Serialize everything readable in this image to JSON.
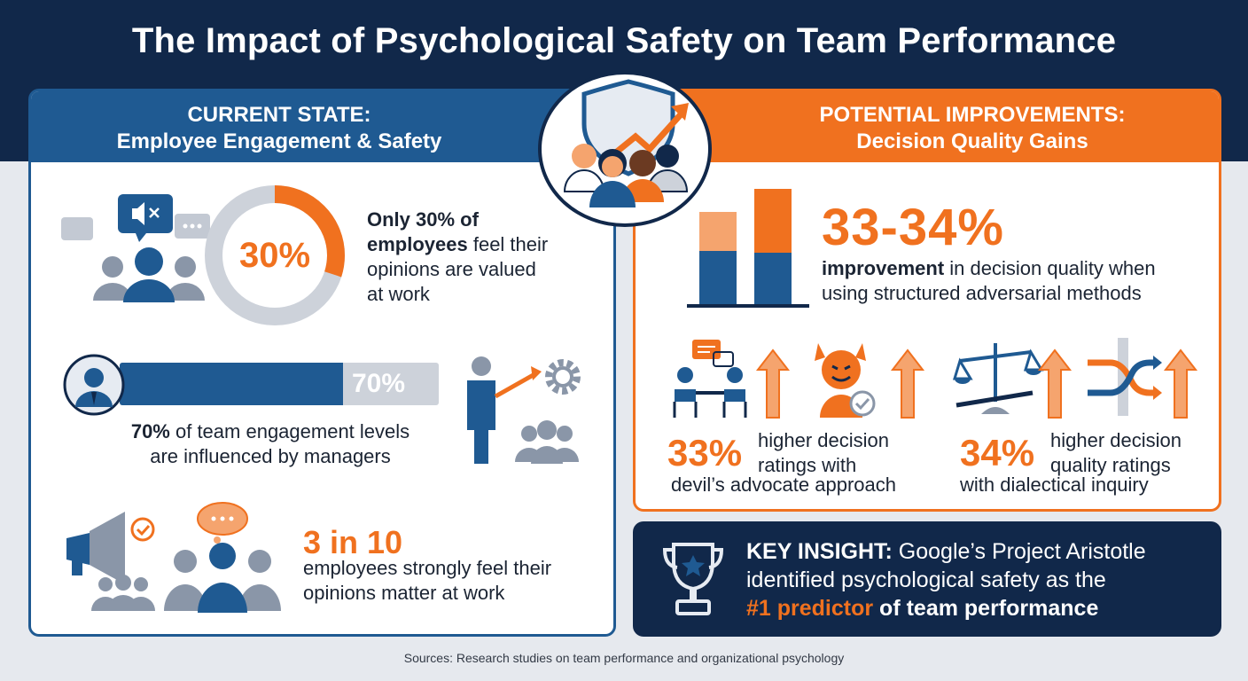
{
  "title": "The Impact of Psychological Safety on Team Performance",
  "left_panel": {
    "heading_line1": "CURRENT STATE:",
    "heading_line2": "Employee Engagement & Safety",
    "stat1": {
      "value_label": "30%",
      "value": 30,
      "text_bold_1": "Only 30% of",
      "text_bold_2": "employees",
      "text_rest_1": " feel their",
      "text_line_3": "opinions are valued",
      "text_line_4": "at work"
    },
    "stat2": {
      "value_label": "70%",
      "value": 70,
      "text_bold": "70%",
      "text_rest_1": " of team engagement levels",
      "text_line_2": "are influenced by managers"
    },
    "stat3": {
      "headline": "3 in 10",
      "text_line_1": "employees strongly feel their",
      "text_line_2": "opinions matter at work"
    }
  },
  "right_panel": {
    "heading_line1": "POTENTIAL IMPROVEMENTS:",
    "heading_line2": "Decision Quality Gains",
    "main_stat": {
      "headline": "33-34%",
      "text_bold": "improvement",
      "text_rest_1": " in decision quality when",
      "text_line_2": "using structured adversarial methods"
    },
    "stat_a": {
      "value": "33%",
      "line1": "higher decision",
      "line2": "ratings with",
      "line3": "devil’s advocate approach"
    },
    "stat_b": {
      "value": "34%",
      "line1": "higher decision",
      "line2": "quality ratings",
      "line3": "with dialectical inquiry"
    }
  },
  "key_insight": {
    "label": "KEY INSIGHT:",
    "text_1": " Google’s Project Aristotle",
    "text_2": "identified psychological safety as the",
    "highlight": "#1 predictor",
    "text_3": " of team performance"
  },
  "source": "Sources: Research studies on team performance and organizational psychology",
  "colors": {
    "navy": "#11284a",
    "blue": "#1f5a92",
    "orange": "#f0711f",
    "light_orange": "#f5a46e",
    "gray": "#cdd2da"
  },
  "icons": [
    "shield-team-growth-icon",
    "muted-speech-icon",
    "team-icon",
    "manager-avatar-icon",
    "presenter-gear-icon",
    "megaphone-icon",
    "thought-bubble-team-icon",
    "bar-chart-icon",
    "discussion-icon",
    "devil-icon",
    "scales-icon",
    "crossing-arrows-icon",
    "up-arrow-icon",
    "trophy-icon"
  ]
}
